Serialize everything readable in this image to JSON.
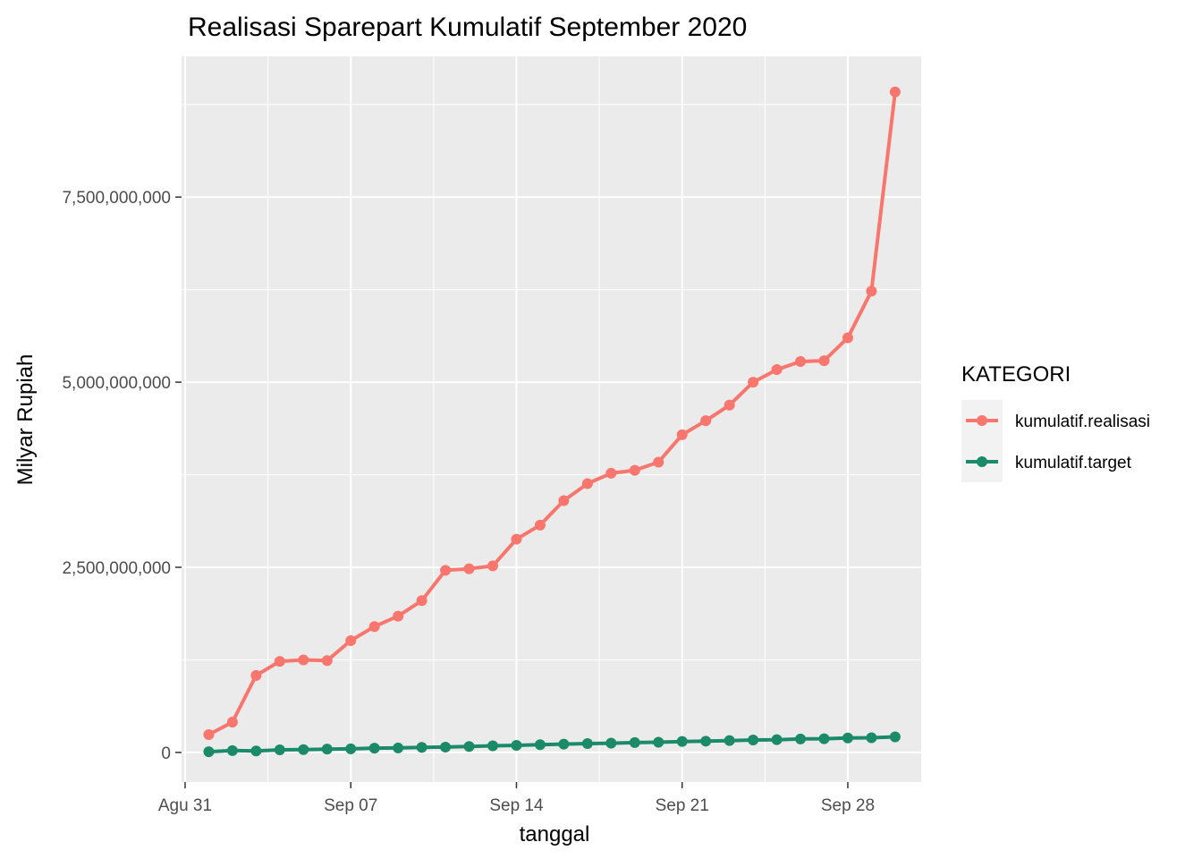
{
  "chart_data": {
    "type": "line",
    "title": "Realisasi Sparepart Kumulatif September 2020",
    "xlabel": "tanggal",
    "ylabel": "Milyar Rupiah",
    "x_ticks": [
      {
        "day": 0,
        "label": "Agu 31"
      },
      {
        "day": 7,
        "label": "Sep 07"
      },
      {
        "day": 14,
        "label": "Sep 14"
      },
      {
        "day": 21,
        "label": "Sep 21"
      },
      {
        "day": 28,
        "label": "Sep 28"
      }
    ],
    "y_ticks": [
      {
        "value": 0,
        "label": "0"
      },
      {
        "value": 2500000000,
        "label": "2,500,000,000"
      },
      {
        "value": 5000000000,
        "label": "5,000,000,000"
      },
      {
        "value": 7500000000,
        "label": "7,500,000,000"
      }
    ],
    "x_range_days": [
      -0.15,
      31.1
    ],
    "ylim": [
      -400000000,
      9400000000
    ],
    "grid": true,
    "legend": {
      "title": "KATEGORI",
      "position": "right"
    },
    "series": [
      {
        "name": "kumulatif.realisasi",
        "color": "#F8766D",
        "x": [
          1,
          2,
          3,
          4,
          5,
          6,
          7,
          8,
          9,
          10,
          11,
          12,
          13,
          14,
          15,
          16,
          17,
          18,
          19,
          20,
          21,
          22,
          23,
          24,
          25,
          26,
          27,
          28,
          29,
          30
        ],
        "values": [
          240000000,
          410000000,
          1040000000,
          1230000000,
          1250000000,
          1240000000,
          1510000000,
          1700000000,
          1840000000,
          2050000000,
          2460000000,
          2480000000,
          2520000000,
          2880000000,
          3070000000,
          3400000000,
          3630000000,
          3770000000,
          3810000000,
          3920000000,
          4290000000,
          4480000000,
          4690000000,
          5000000000,
          5170000000,
          5280000000,
          5290000000,
          5600000000,
          6230000000,
          8920000000
        ]
      },
      {
        "name": "kumulatif.target",
        "color": "#1B8A68",
        "x": [
          1,
          2,
          3,
          4,
          5,
          6,
          7,
          8,
          9,
          10,
          11,
          12,
          13,
          14,
          15,
          16,
          17,
          18,
          19,
          20,
          21,
          22,
          23,
          24,
          25,
          26,
          27,
          28,
          29,
          30
        ],
        "values": [
          10000000,
          25000000,
          20000000,
          35000000,
          38000000,
          45000000,
          48000000,
          58000000,
          60000000,
          68000000,
          72000000,
          80000000,
          90000000,
          95000000,
          105000000,
          112000000,
          120000000,
          125000000,
          133000000,
          138000000,
          148000000,
          152000000,
          160000000,
          168000000,
          172000000,
          182000000,
          185000000,
          195000000,
          198000000,
          210000000
        ]
      }
    ]
  }
}
